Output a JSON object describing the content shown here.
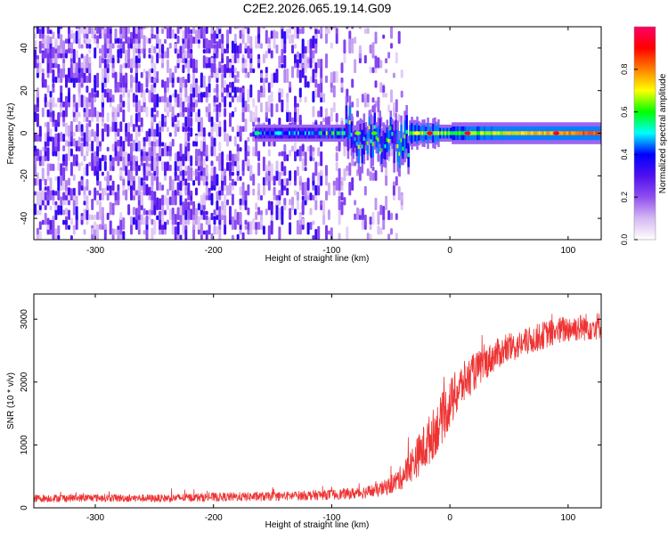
{
  "title": "C2E2.2026.065.19.14.G09",
  "chart_data": [
    {
      "type": "heatmap",
      "title": "C2E2.2026.065.19.14.G09",
      "xlabel": "Height of straight line (km)",
      "ylabel": "Frequency (Hz)",
      "xlim": [
        -352,
        128
      ],
      "ylim": [
        -50,
        50
      ],
      "xticks": [
        "-300",
        "-200",
        "-100",
        "0",
        "100"
      ],
      "xtick_values": [
        -300,
        -200,
        -100,
        0,
        100
      ],
      "yticks": [
        "40",
        "20",
        "0",
        "-20",
        "-40"
      ],
      "ytick_values": [
        40,
        20,
        0,
        -20,
        -40
      ],
      "colorbar": {
        "label": "Normalized spectral amplitude",
        "range": [
          0,
          1
        ],
        "ticks": [
          "0.0",
          "0.2",
          "0.4",
          "0.6",
          "0.8"
        ],
        "tick_values": [
          0.0,
          0.2,
          0.4,
          0.6,
          0.8
        ],
        "colors": [
          "#ffffff",
          "#d6b8f2",
          "#8f4ff0",
          "#5010ee",
          "#0000ff",
          "#00ffff",
          "#00ff00",
          "#ffff00",
          "#ff8000",
          "#ff0000",
          "#ff0066"
        ]
      },
      "features": {
        "noise_region_end_km": -40,
        "carrier_start_km": -165,
        "carrier_frequency_hz": 0
      }
    },
    {
      "type": "line",
      "xlabel": "Height of straight line (km)",
      "ylabel": "SNR (10 * v/v)",
      "xlim": [
        -352,
        128
      ],
      "ylim": [
        0,
        3400
      ],
      "xticks": [
        "-300",
        "-200",
        "-100",
        "0",
        "100"
      ],
      "xtick_values": [
        -300,
        -200,
        -100,
        0,
        100
      ],
      "yticks": [
        "0",
        "1000",
        "2000",
        "3000"
      ],
      "ytick_values": [
        0,
        1000,
        2000,
        3000
      ],
      "series": [
        {
          "name": "SNR",
          "color": "#ee3333",
          "x": [
            -352,
            -300,
            -250,
            -200,
            -150,
            -100,
            -80,
            -60,
            -50,
            -40,
            -30,
            -20,
            -10,
            0,
            10,
            20,
            30,
            40,
            60,
            80,
            100,
            128
          ],
          "values": [
            150,
            160,
            150,
            170,
            180,
            210,
            230,
            280,
            360,
            500,
            750,
            1000,
            1300,
            1650,
            1950,
            2150,
            2300,
            2450,
            2600,
            2750,
            2850,
            2900
          ],
          "noise": [
            60,
            60,
            60,
            70,
            70,
            80,
            90,
            110,
            140,
            200,
            300,
            400,
            400,
            400,
            350,
            300,
            260,
            240,
            220,
            220,
            220,
            220
          ]
        }
      ]
    }
  ]
}
